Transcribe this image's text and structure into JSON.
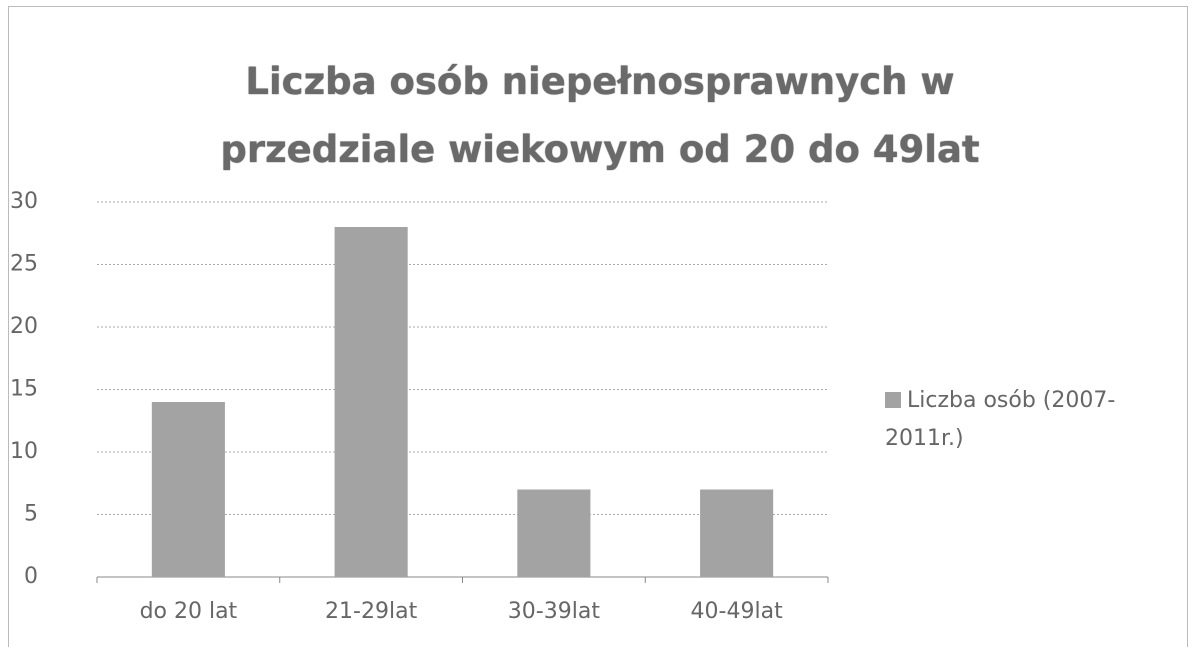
{
  "chart_data": {
    "type": "bar",
    "title": "Liczba osób niepełnosprawnych w przedziale wiekowym od 20 do 49lat",
    "categories": [
      "do 20 lat",
      "21-29lat",
      "30-39lat",
      "40-49lat"
    ],
    "series": [
      {
        "name": "Liczba osób (2007-2011r.)",
        "color": "#a3a3a3",
        "values": [
          14,
          28,
          7,
          7
        ]
      }
    ],
    "ylim": [
      0,
      30
    ],
    "yticks": [
      0,
      5,
      10,
      15,
      20,
      25,
      30
    ],
    "grid": true,
    "legend": "right"
  }
}
